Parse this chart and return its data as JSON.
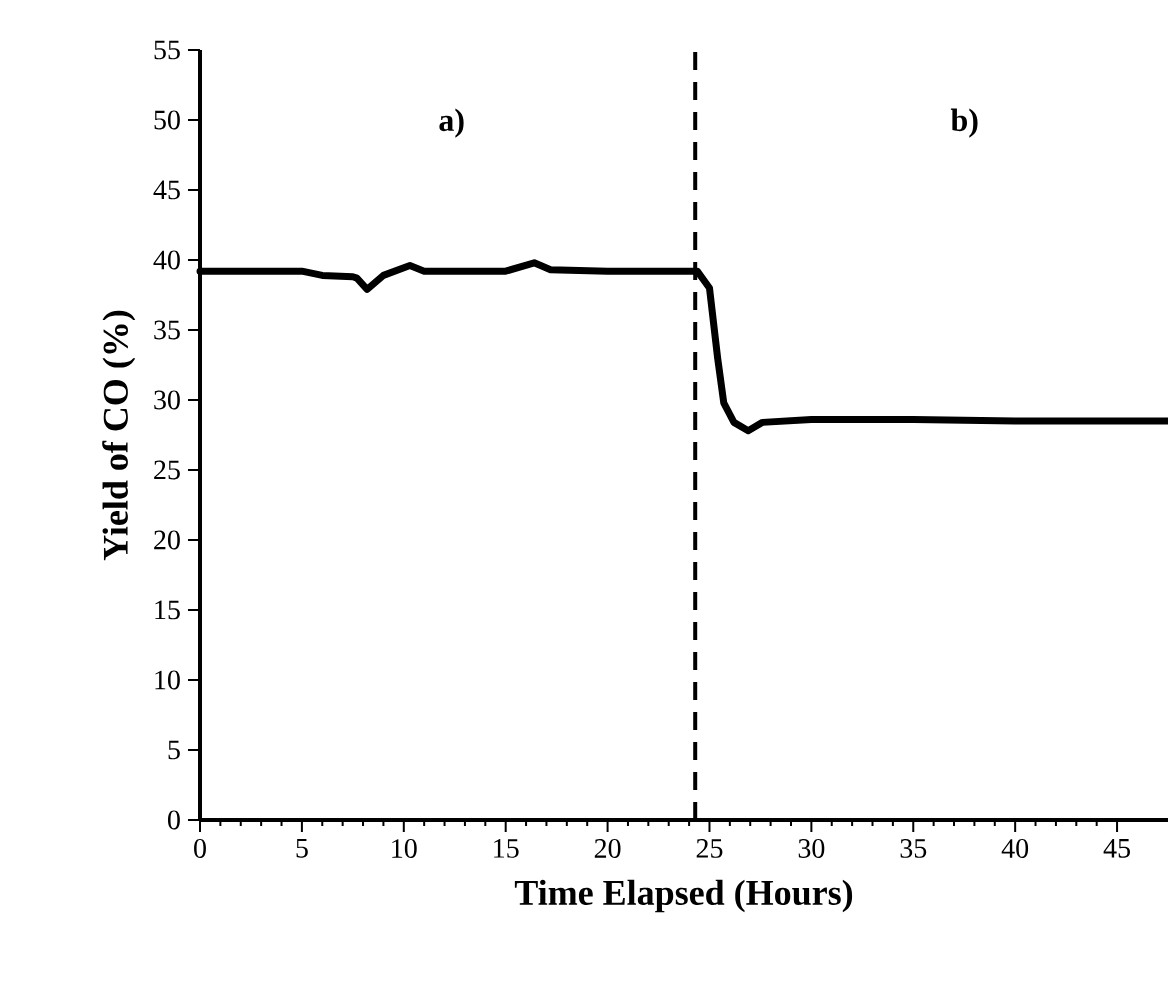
{
  "chart_data": {
    "type": "line",
    "xlabel": "Time Elapsed (Hours)",
    "ylabel": "Yield of CO (%)",
    "annotations": [
      "a)",
      "b)"
    ],
    "x": [
      0,
      3,
      5,
      6,
      7.5,
      7.7,
      8.2,
      9,
      10.3,
      11,
      15,
      16.4,
      17.2,
      20,
      24.4,
      25,
      25.4,
      25.7,
      26.2,
      26.9,
      27.6,
      30,
      35,
      40,
      45,
      47.5
    ],
    "series": [
      {
        "color": "#000000",
        "values": [
          39.2,
          39.2,
          39.2,
          38.9,
          38.8,
          38.7,
          37.9,
          38.9,
          39.6,
          39.2,
          39.2,
          39.8,
          39.3,
          39.2,
          39.2,
          38,
          33,
          29.8,
          28.4,
          27.8,
          28.4,
          28.6,
          28.6,
          28.5,
          28.5,
          28.5
        ]
      }
    ],
    "xlim": [
      0,
      47.5
    ],
    "ylim": [
      0,
      55
    ],
    "xticks": [
      0,
      5,
      10,
      15,
      20,
      25,
      30,
      35,
      40,
      45
    ],
    "yticks": [
      0,
      5,
      10,
      15,
      20,
      25,
      30,
      35,
      40,
      45,
      50,
      55
    ],
    "ref_lines": [
      {
        "axis": "x",
        "value": 24.3,
        "color": "#000000",
        "line_style": "dashed"
      }
    ],
    "grid": false,
    "marker": "none",
    "line_style": "solid"
  }
}
